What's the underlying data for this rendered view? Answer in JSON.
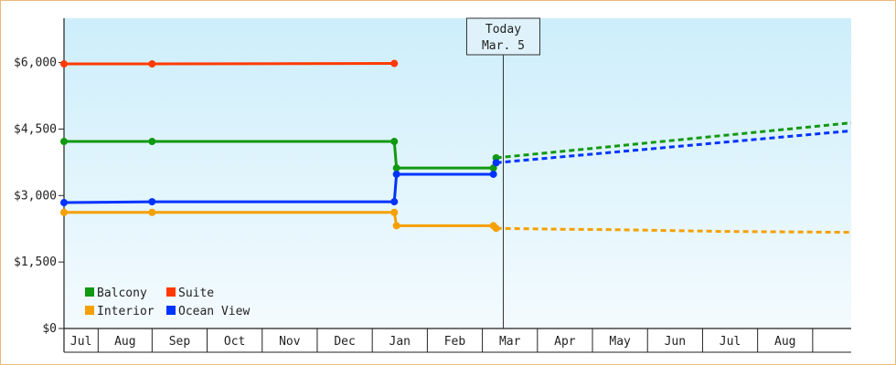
{
  "chart_data": {
    "type": "line",
    "ylim": [
      0,
      7000
    ],
    "yticks": [
      {
        "value": 0,
        "label": "$0"
      },
      {
        "value": 1500,
        "label": "$1,500"
      },
      {
        "value": 3000,
        "label": "$3,000"
      },
      {
        "value": 4500,
        "label": "$4,500"
      },
      {
        "value": 6000,
        "label": "$6,000"
      }
    ],
    "months": [
      "Jul",
      "Aug",
      "Sep",
      "Oct",
      "Nov",
      "Dec",
      "Jan",
      "Feb",
      "Mar",
      "Apr",
      "May",
      "Jun",
      "Jul",
      "Aug"
    ],
    "xlim": [
      0,
      14.3
    ],
    "today": {
      "line1": "Today",
      "line2": "Mar. 5",
      "x": 7.98
    },
    "legend": {
      "position": "bottom-left"
    },
    "series": [
      {
        "name": "Balcony",
        "color": "#119911",
        "points": [
          [
            0,
            4220
          ],
          [
            1.6,
            4220
          ],
          [
            6.0,
            4220
          ],
          [
            6.04,
            3620
          ],
          [
            7.8,
            3620
          ],
          [
            7.85,
            3850
          ]
        ],
        "forecast": [
          [
            7.85,
            3850
          ],
          [
            14.3,
            4640
          ]
        ]
      },
      {
        "name": "Suite",
        "color": "#ff3a00",
        "points": [
          [
            0,
            5970
          ],
          [
            1.6,
            5970
          ],
          [
            6.0,
            5980
          ]
        ],
        "forecast": []
      },
      {
        "name": "Interior",
        "color": "#f5a000",
        "points": [
          [
            0,
            2620
          ],
          [
            1.6,
            2620
          ],
          [
            6.0,
            2620
          ],
          [
            6.04,
            2320
          ],
          [
            7.8,
            2320
          ],
          [
            7.85,
            2260
          ]
        ],
        "forecast": [
          [
            7.85,
            2260
          ],
          [
            9.0,
            2240
          ],
          [
            10.0,
            2230
          ],
          [
            11.0,
            2210
          ],
          [
            12.0,
            2190
          ],
          [
            14.3,
            2170
          ]
        ]
      },
      {
        "name": "Ocean View",
        "color": "#0033ff",
        "points": [
          [
            0,
            2840
          ],
          [
            1.6,
            2860
          ],
          [
            6.0,
            2860
          ],
          [
            6.04,
            3480
          ],
          [
            7.8,
            3480
          ],
          [
            7.85,
            3740
          ]
        ],
        "forecast": [
          [
            7.85,
            3740
          ],
          [
            14.3,
            4460
          ]
        ]
      }
    ]
  }
}
